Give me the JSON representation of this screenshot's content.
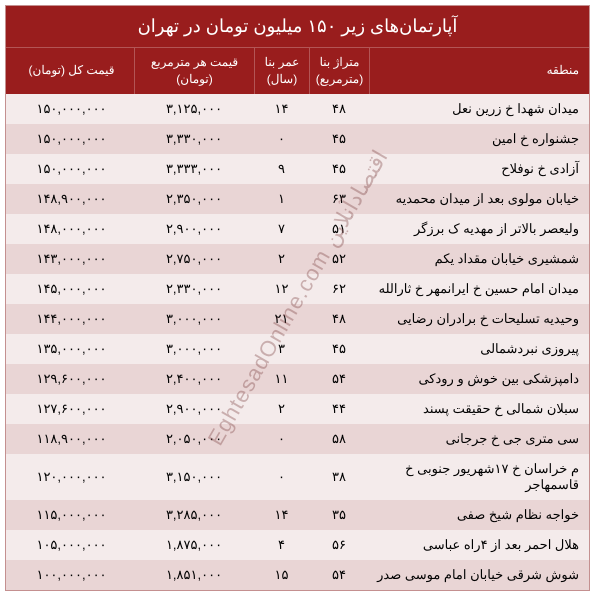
{
  "title": "آپارتمان‌های زیر ۱۵۰ میلیون تومان در تهران",
  "watermark": "EghtesadOnline.com اقتصادآنلاین",
  "colors": {
    "header_bg": "#991d1d",
    "header_text": "#ffffff",
    "row_even": "#f4ebeb",
    "row_odd": "#e9d5d5",
    "border": "#c49090"
  },
  "columns": [
    {
      "key": "region",
      "label": "منطقه"
    },
    {
      "key": "area",
      "label": "متراژ بنا (مترمربع)"
    },
    {
      "key": "age",
      "label": "عمر بنا (سال)"
    },
    {
      "key": "price_sqm",
      "label": "قیمت هر مترمربع (تومان)"
    },
    {
      "key": "price_total",
      "label": "قیمت کل (تومان)"
    }
  ],
  "rows": [
    {
      "region": "میدان شهدا خ زرین نعل",
      "area": "۴۸",
      "age": "۱۴",
      "price_sqm": "۳,۱۲۵,۰۰۰",
      "price_total": "۱۵۰,۰۰۰,۰۰۰"
    },
    {
      "region": "جشنواره خ امین",
      "area": "۴۵",
      "age": "۰",
      "price_sqm": "۳,۳۳۰,۰۰۰",
      "price_total": "۱۵۰,۰۰۰,۰۰۰"
    },
    {
      "region": "آزادی خ نوفلاح",
      "area": "۴۵",
      "age": "۹",
      "price_sqm": "۳,۳۳۳,۰۰۰",
      "price_total": "۱۵۰,۰۰۰,۰۰۰"
    },
    {
      "region": "خیابان مولوی بعد از میدان محمدیه",
      "area": "۶۳",
      "age": "۱",
      "price_sqm": "۲,۳۵۰,۰۰۰",
      "price_total": "۱۴۸,۹۰۰,۰۰۰"
    },
    {
      "region": "ولیعصر بالاتر از مهدیه ک برزگر",
      "area": "۵۱",
      "age": "۷",
      "price_sqm": "۲,۹۰۰,۰۰۰",
      "price_total": "۱۴۸,۰۰۰,۰۰۰"
    },
    {
      "region": "شمشیری خیابان مقداد یکم",
      "area": "۵۲",
      "age": "۲",
      "price_sqm": "۲,۷۵۰,۰۰۰",
      "price_total": "۱۴۳,۰۰۰,۰۰۰"
    },
    {
      "region": "میدان امام حسین خ ایرانمهر خ ثارالله",
      "area": "۶۲",
      "age": "۱۲",
      "price_sqm": "۲,۳۳۰,۰۰۰",
      "price_total": "۱۴۵,۰۰۰,۰۰۰"
    },
    {
      "region": "وحیدیه تسلیحات خ برادران رضایی",
      "area": "۴۸",
      "age": "۲۱",
      "price_sqm": "۳,۰۰۰,۰۰۰",
      "price_total": "۱۴۴,۰۰۰,۰۰۰"
    },
    {
      "region": "پیروزی نبردشمالی",
      "area": "۴۵",
      "age": "۳",
      "price_sqm": "۳,۰۰۰,۰۰۰",
      "price_total": "۱۳۵,۰۰۰,۰۰۰"
    },
    {
      "region": "دامپزشکی بین خوش و رودکی",
      "area": "۵۴",
      "age": "۱۱",
      "price_sqm": "۲,۴۰۰,۰۰۰",
      "price_total": "۱۲۹,۶۰۰,۰۰۰"
    },
    {
      "region": "سبلان شمالی خ حقیقت پسند",
      "area": "۴۴",
      "age": "۲",
      "price_sqm": "۲,۹۰۰,۰۰۰",
      "price_total": "۱۲۷,۶۰۰,۰۰۰"
    },
    {
      "region": "سی متری جی خ جرجانی",
      "area": "۵۸",
      "age": "۰",
      "price_sqm": "۲,۰۵۰,۰۰۰",
      "price_total": "۱۱۸,۹۰۰,۰۰۰"
    },
    {
      "region": "م خراسان خ ۱۷شهریور جنوبی خ قاسمهاجر",
      "area": "۳۸",
      "age": "۰",
      "price_sqm": "۳,۱۵۰,۰۰۰",
      "price_total": "۱۲۰,۰۰۰,۰۰۰"
    },
    {
      "region": "خواجه نظام شیخ صفی",
      "area": "۳۵",
      "age": "۱۴",
      "price_sqm": "۳,۲۸۵,۰۰۰",
      "price_total": "۱۱۵,۰۰۰,۰۰۰"
    },
    {
      "region": "هلال احمر بعد از ۴راه عباسی",
      "area": "۵۶",
      "age": "۴",
      "price_sqm": "۱,۸۷۵,۰۰۰",
      "price_total": "۱۰۵,۰۰۰,۰۰۰"
    },
    {
      "region": "شوش شرقی خیابان امام موسی صدر",
      "area": "۵۴",
      "age": "۱۵",
      "price_sqm": "۱,۸۵۱,۰۰۰",
      "price_total": "۱۰۰,۰۰۰,۰۰۰"
    }
  ]
}
